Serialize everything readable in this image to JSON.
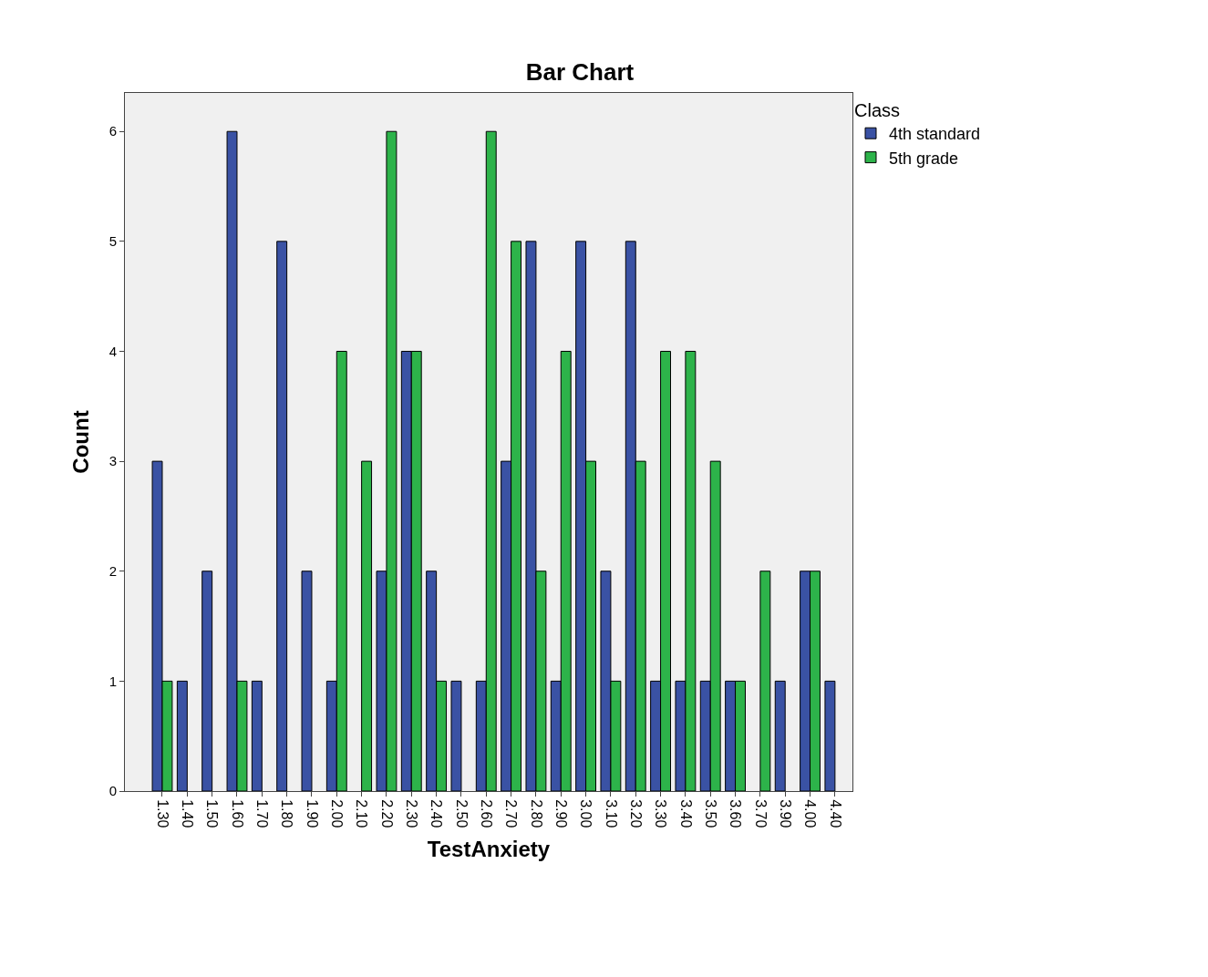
{
  "chart_data": {
    "type": "bar",
    "title": "Bar Chart",
    "xlabel": "TestAnxiety",
    "ylabel": "Count",
    "legend_title": "Class",
    "categories": [
      "1.30",
      "1.40",
      "1.50",
      "1.60",
      "1.70",
      "1.80",
      "1.90",
      "2.00",
      "2.10",
      "2.20",
      "2.30",
      "2.40",
      "2.50",
      "2.60",
      "2.70",
      "2.80",
      "2.90",
      "3.00",
      "3.10",
      "3.20",
      "3.30",
      "3.40",
      "3.50",
      "3.60",
      "3.70",
      "3.90",
      "4.00",
      "4.40"
    ],
    "series": [
      {
        "name": "4th standard",
        "color": "#3a52a4",
        "values": [
          3,
          1,
          2,
          6,
          1,
          5,
          2,
          1,
          null,
          2,
          4,
          2,
          1,
          1,
          3,
          5,
          1,
          5,
          2,
          5,
          1,
          1,
          1,
          1,
          null,
          1,
          2,
          1
        ]
      },
      {
        "name": "5th grade",
        "color": "#2db34a",
        "values": [
          1,
          null,
          null,
          1,
          null,
          null,
          null,
          4,
          3,
          6,
          4,
          1,
          null,
          6,
          5,
          2,
          4,
          3,
          1,
          3,
          4,
          4,
          3,
          1,
          2,
          null,
          2,
          null
        ]
      }
    ],
    "ylim": [
      0,
      6.35
    ],
    "yticks": [
      0,
      1,
      2,
      3,
      4,
      5,
      6
    ],
    "grid": false,
    "legend": "top right"
  }
}
